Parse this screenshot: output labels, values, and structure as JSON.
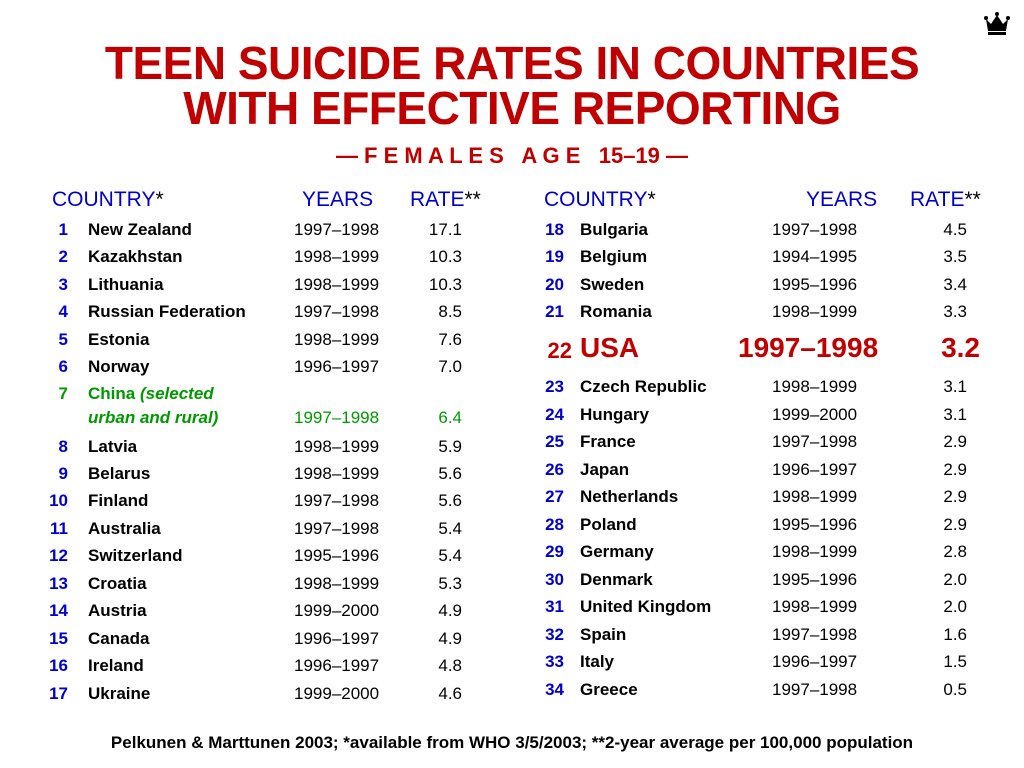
{
  "title": [
    "TEEN SUICIDE RATES IN COUNTRIES",
    "WITH EFFECTIVE REPORTING"
  ],
  "subtitle": "— F E M A L E S   A G E   15–19 —",
  "headers": {
    "country": "COUNTRY",
    "country_mark": "*",
    "years": "YEARS",
    "rate": "RATE",
    "rate_mark": "**"
  },
  "left_rows": [
    {
      "rank": "1",
      "country": "New Zealand",
      "years": "1997–1998",
      "rate": "17.1"
    },
    {
      "rank": "2",
      "country": "Kazakhstan",
      "years": "1998–1999",
      "rate": "10.3"
    },
    {
      "rank": "3",
      "country": "Lithuania",
      "years": "1998–1999",
      "rate": "10.3"
    },
    {
      "rank": "4",
      "country": "Russian Federation",
      "years": "1997–1998",
      "rate": "8.5"
    },
    {
      "rank": "5",
      "country": "Estonia",
      "years": "1998–1999",
      "rate": "7.6"
    },
    {
      "rank": "6",
      "country": "Norway",
      "years": "1996–1997",
      "rate": "7.0"
    },
    {
      "rank": "8",
      "country": "Latvia",
      "years": "1998–1999",
      "rate": "5.9"
    },
    {
      "rank": "9",
      "country": "Belarus",
      "years": "1998–1999",
      "rate": "5.6"
    },
    {
      "rank": "10",
      "country": "Finland",
      "years": "1997–1998",
      "rate": "5.6"
    },
    {
      "rank": "11",
      "country": "Australia",
      "years": "1997–1998",
      "rate": "5.4"
    },
    {
      "rank": "12",
      "country": "Switzerland",
      "years": "1995–1996",
      "rate": "5.4"
    },
    {
      "rank": "13",
      "country": "Croatia",
      "years": "1998–1999",
      "rate": "5.3"
    },
    {
      "rank": "14",
      "country": "Austria",
      "years": "1999–2000",
      "rate": "4.9"
    },
    {
      "rank": "15",
      "country": "Canada",
      "years": "1996–1997",
      "rate": "4.9"
    },
    {
      "rank": "16",
      "country": "Ireland",
      "years": "1996–1997",
      "rate": "4.8"
    },
    {
      "rank": "17",
      "country": "Ukraine",
      "years": "1999–2000",
      "rate": "4.6"
    }
  ],
  "china": {
    "rank": "7",
    "country": "China",
    "note1": "(selected",
    "note2": "urban and rural)",
    "years": "1997–1998",
    "rate": "6.4"
  },
  "right_rows": [
    {
      "rank": "18",
      "country": "Bulgaria",
      "years": "1997–1998",
      "rate": "4.5"
    },
    {
      "rank": "19",
      "country": "Belgium",
      "years": "1994–1995",
      "rate": "3.5"
    },
    {
      "rank": "20",
      "country": "Sweden",
      "years": "1995–1996",
      "rate": "3.4"
    },
    {
      "rank": "21",
      "country": "Romania",
      "years": "1998–1999",
      "rate": "3.3"
    },
    {
      "rank": "23",
      "country": "Czech Republic",
      "years": "1998–1999",
      "rate": "3.1"
    },
    {
      "rank": "24",
      "country": "Hungary",
      "years": "1999–2000",
      "rate": "3.1"
    },
    {
      "rank": "25",
      "country": "France",
      "years": "1997–1998",
      "rate": "2.9"
    },
    {
      "rank": "26",
      "country": "Japan",
      "years": "1996–1997",
      "rate": "2.9"
    },
    {
      "rank": "27",
      "country": "Netherlands",
      "years": "1998–1999",
      "rate": "2.9"
    },
    {
      "rank": "28",
      "country": "Poland",
      "years": "1995–1996",
      "rate": "2.9"
    },
    {
      "rank": "29",
      "country": "Germany",
      "years": "1998–1999",
      "rate": "2.8"
    },
    {
      "rank": "30",
      "country": "Denmark",
      "years": "1995–1996",
      "rate": "2.0"
    },
    {
      "rank": "31",
      "country": "United Kingdom",
      "years": "1998–1999",
      "rate": "2.0"
    },
    {
      "rank": "32",
      "country": "Spain",
      "years": "1997–1998",
      "rate": "1.6"
    },
    {
      "rank": "33",
      "country": "Italy",
      "years": "1996–1997",
      "rate": "1.5"
    },
    {
      "rank": "34",
      "country": "Greece",
      "years": "1997–1998",
      "rate": "0.5"
    }
  ],
  "usa": {
    "rank": "22",
    "country": "USA",
    "years": "1997–1998",
    "rate": "3.2"
  },
  "source": "Pelkunen & Marttunen 2003; *available from WHO 3/5/2003; **2-year average per 100,000 population",
  "icon": "crown-icon",
  "colors": {
    "title": "#c00000",
    "rank": "#0000cc",
    "china": "#009900",
    "usa": "#c00000"
  }
}
